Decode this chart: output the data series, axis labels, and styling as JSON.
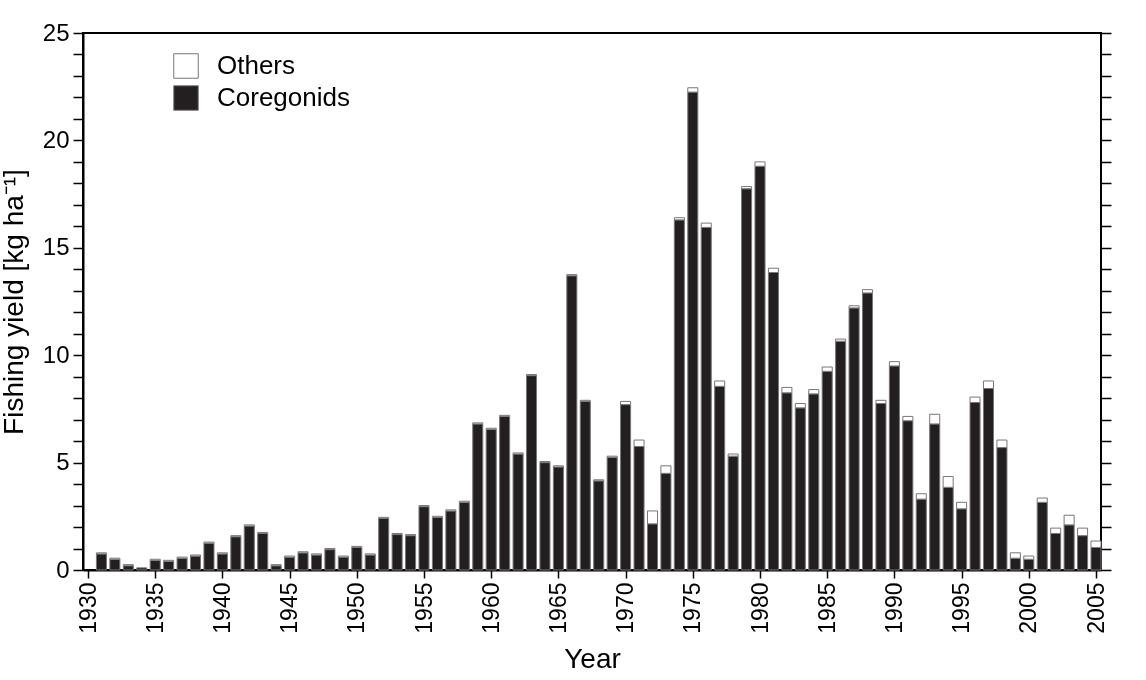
{
  "chart_data": {
    "type": "bar",
    "stacked": true,
    "xlabel": "Year",
    "ylabel": "Fishing yield [kg ha⁻¹]",
    "x": [
      1931,
      1932,
      1933,
      1934,
      1935,
      1936,
      1937,
      1938,
      1939,
      1940,
      1941,
      1942,
      1943,
      1944,
      1945,
      1946,
      1947,
      1948,
      1949,
      1950,
      1951,
      1952,
      1953,
      1954,
      1955,
      1956,
      1957,
      1958,
      1959,
      1960,
      1961,
      1962,
      1963,
      1964,
      1965,
      1966,
      1967,
      1968,
      1969,
      1970,
      1971,
      1972,
      1973,
      1974,
      1975,
      1976,
      1977,
      1978,
      1979,
      1980,
      1981,
      1982,
      1983,
      1984,
      1985,
      1986,
      1987,
      1988,
      1989,
      1990,
      1991,
      1992,
      1993,
      1994,
      1995,
      1996,
      1997,
      1998,
      1999,
      2000,
      2001,
      2002,
      2003,
      2004,
      2005
    ],
    "series": [
      {
        "name": "Coregonids",
        "color": "#231f20",
        "values": [
          0.75,
          0.5,
          0.2,
          0.1,
          0.45,
          0.4,
          0.55,
          0.65,
          1.25,
          0.75,
          1.55,
          2.05,
          1.7,
          0.2,
          0.6,
          0.8,
          0.7,
          0.95,
          0.6,
          1.05,
          0.7,
          2.4,
          1.65,
          1.6,
          2.95,
          2.45,
          2.75,
          3.15,
          6.8,
          6.55,
          7.15,
          5.4,
          9.05,
          5.0,
          4.8,
          13.7,
          7.85,
          4.15,
          5.25,
          7.7,
          5.75,
          2.15,
          4.5,
          16.3,
          22.25,
          15.95,
          8.55,
          5.3,
          17.75,
          18.8,
          13.85,
          8.25,
          7.55,
          8.2,
          9.25,
          10.65,
          12.2,
          12.9,
          7.75,
          9.5,
          6.95,
          3.3,
          6.8,
          3.85,
          2.85,
          7.8,
          8.45,
          5.7,
          0.55,
          0.5,
          3.15,
          1.7,
          2.1,
          1.6,
          1.05
        ]
      },
      {
        "name": "Others",
        "color": "#ffffff",
        "values": [
          0.05,
          0.05,
          0.05,
          null,
          0.05,
          0.05,
          0.05,
          0.05,
          0.05,
          0.05,
          0.05,
          0.05,
          0.05,
          0.05,
          0.05,
          0.05,
          0.05,
          0.05,
          0.05,
          0.05,
          0.05,
          0.05,
          0.05,
          0.05,
          0.05,
          0.05,
          0.05,
          0.05,
          0.05,
          0.05,
          0.05,
          0.05,
          0.05,
          0.05,
          0.05,
          0.05,
          0.05,
          0.05,
          0.05,
          0.15,
          0.3,
          0.6,
          0.35,
          0.1,
          0.2,
          0.2,
          0.25,
          0.1,
          0.1,
          0.2,
          0.2,
          0.25,
          0.2,
          0.2,
          0.2,
          0.1,
          0.1,
          0.15,
          0.15,
          0.2,
          0.2,
          0.25,
          0.45,
          0.5,
          0.3,
          0.25,
          0.35,
          0.35,
          0.25,
          0.15,
          0.2,
          0.25,
          0.45,
          0.35,
          0.3
        ]
      }
    ],
    "xlim": [
      1930,
      2005
    ],
    "xticks": [
      1930,
      1935,
      1940,
      1945,
      1950,
      1955,
      1960,
      1965,
      1970,
      1975,
      1980,
      1985,
      1990,
      1995,
      2000,
      2005
    ],
    "ylim": [
      0,
      25
    ],
    "yticks": [
      0,
      {
        "value": 1,
        "label": null
      },
      {
        "value": 2,
        "label": null
      },
      {
        "value": 3,
        "label": null
      },
      {
        "value": 4,
        "label": null
      },
      5,
      {
        "value": 6,
        "label": null
      },
      {
        "value": 7,
        "label": null
      },
      {
        "value": 8,
        "label": null
      },
      {
        "value": 9,
        "label": null
      },
      10,
      {
        "value": 11,
        "label": null
      },
      {
        "value": 12,
        "label": null
      },
      {
        "value": 13,
        "label": null
      },
      {
        "value": 14,
        "label": null
      },
      15,
      {
        "value": 16,
        "label": null
      },
      {
        "value": 17,
        "label": null
      },
      {
        "value": 18,
        "label": null
      },
      {
        "value": 19,
        "label": null
      },
      20,
      {
        "value": 21,
        "label": null
      },
      {
        "value": 22,
        "label": null
      },
      {
        "value": 23,
        "label": null
      },
      {
        "value": 24,
        "label": null
      },
      25
    ],
    "legend": "top left",
    "grid": false
  }
}
